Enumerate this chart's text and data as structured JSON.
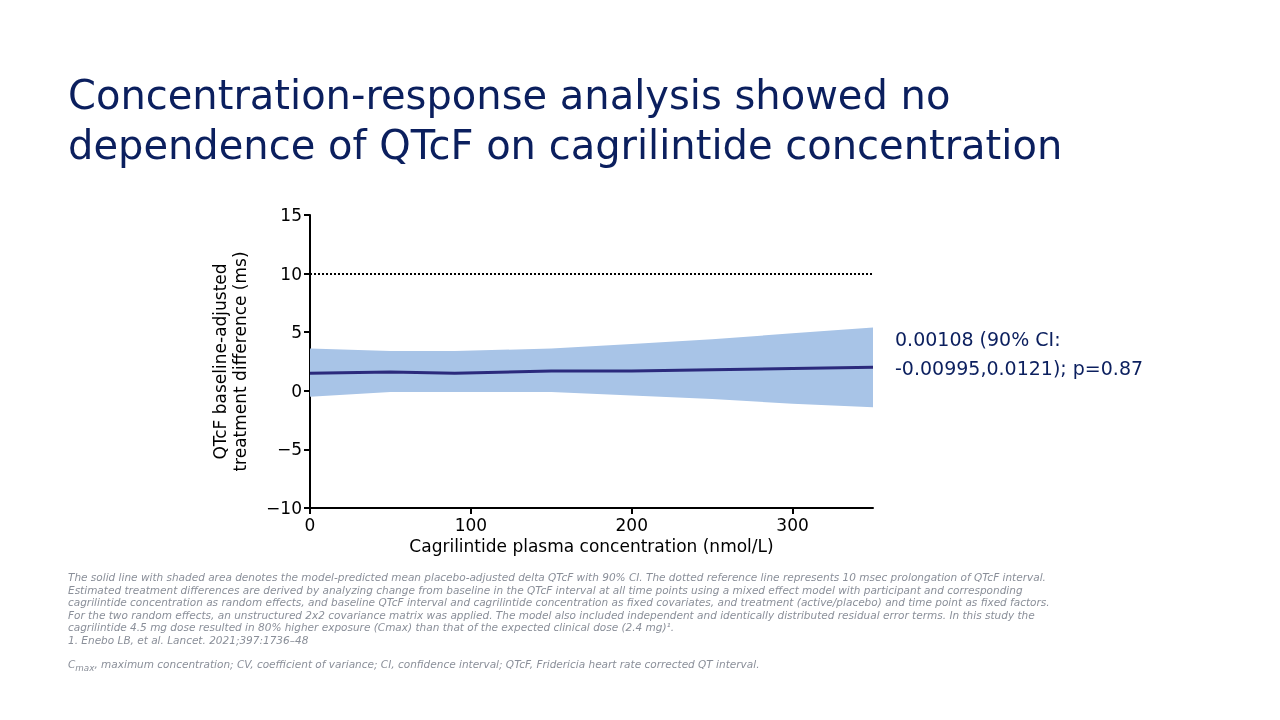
{
  "chart_data": {
    "type": "line",
    "title": "Concentration-response analysis showed no dependence of QTcF on cagrilintide concentration",
    "xlabel": "Cagrilintide plasma concentration (nmol/L)",
    "ylabel": "QTcF baseline-adjusted treatment difference (ms)",
    "xlim": [
      0,
      350
    ],
    "xticks": [
      0,
      100,
      200,
      300
    ],
    "ylim": [
      -10,
      15
    ],
    "yticks": [
      {
        "value": -10,
        "label": "−10"
      },
      {
        "value": -5,
        "label": "−5"
      },
      0,
      5,
      10,
      15
    ],
    "grid": false,
    "marker": "none",
    "line_style": "solid",
    "series": [
      {
        "color": "#2b2a7c",
        "x": [
          0,
          50,
          90,
          150,
          200,
          250,
          300,
          350
        ],
        "values": [
          1.5,
          1.6,
          1.5,
          1.7,
          1.7,
          1.8,
          1.9,
          2.0
        ],
        "lower": [
          -0.5,
          -0.1,
          -0.1,
          -0.1,
          -0.4,
          -0.7,
          -1.1,
          -1.4
        ],
        "upper": [
          3.6,
          3.4,
          3.4,
          3.6,
          4.0,
          4.4,
          4.9,
          5.4
        ]
      }
    ],
    "ref_lines": [
      {
        "axis": "y",
        "value": 10,
        "line_style": "dotted",
        "color": "#000000"
      }
    ],
    "annotations": [
      "0.00108 (90% CI: -0.00995,0.0121); p=0.87",
      "The solid line with shaded area denotes the model-predicted mean placebo-adjusted delta QTcF with 90% CI. The dotted reference line represents 10 msec prolongation of QTcF interval. Estimated treatment differences are derived by analyzing change from baseline in the QTcF interval at all time points using a mixed effect model with participant and corresponding cagrilintide concentration as random effects, and baseline QTcF interval and cagrilintide concentration as fixed covariates, and treatment (active/placebo) and time point as fixed factors. For the two random effects, an unstructured 2x2 covariance matrix was applied. The model also included independent and identically distributed residual error terms. In this study the cagrilintide 4.5 mg dose resulted in 80% higher exposure (Cmax) than that of the expected clinical dose (2.4 mg)¹.",
      "1. Enebo LB, et al. Lancet. 2021;397:1736–48",
      "C$_{max}$, maximum concentration; CV, coefficient of variance; CI, confidence interval; QTcF, Fridericia heart rate corrected QT interval."
    ]
  }
}
